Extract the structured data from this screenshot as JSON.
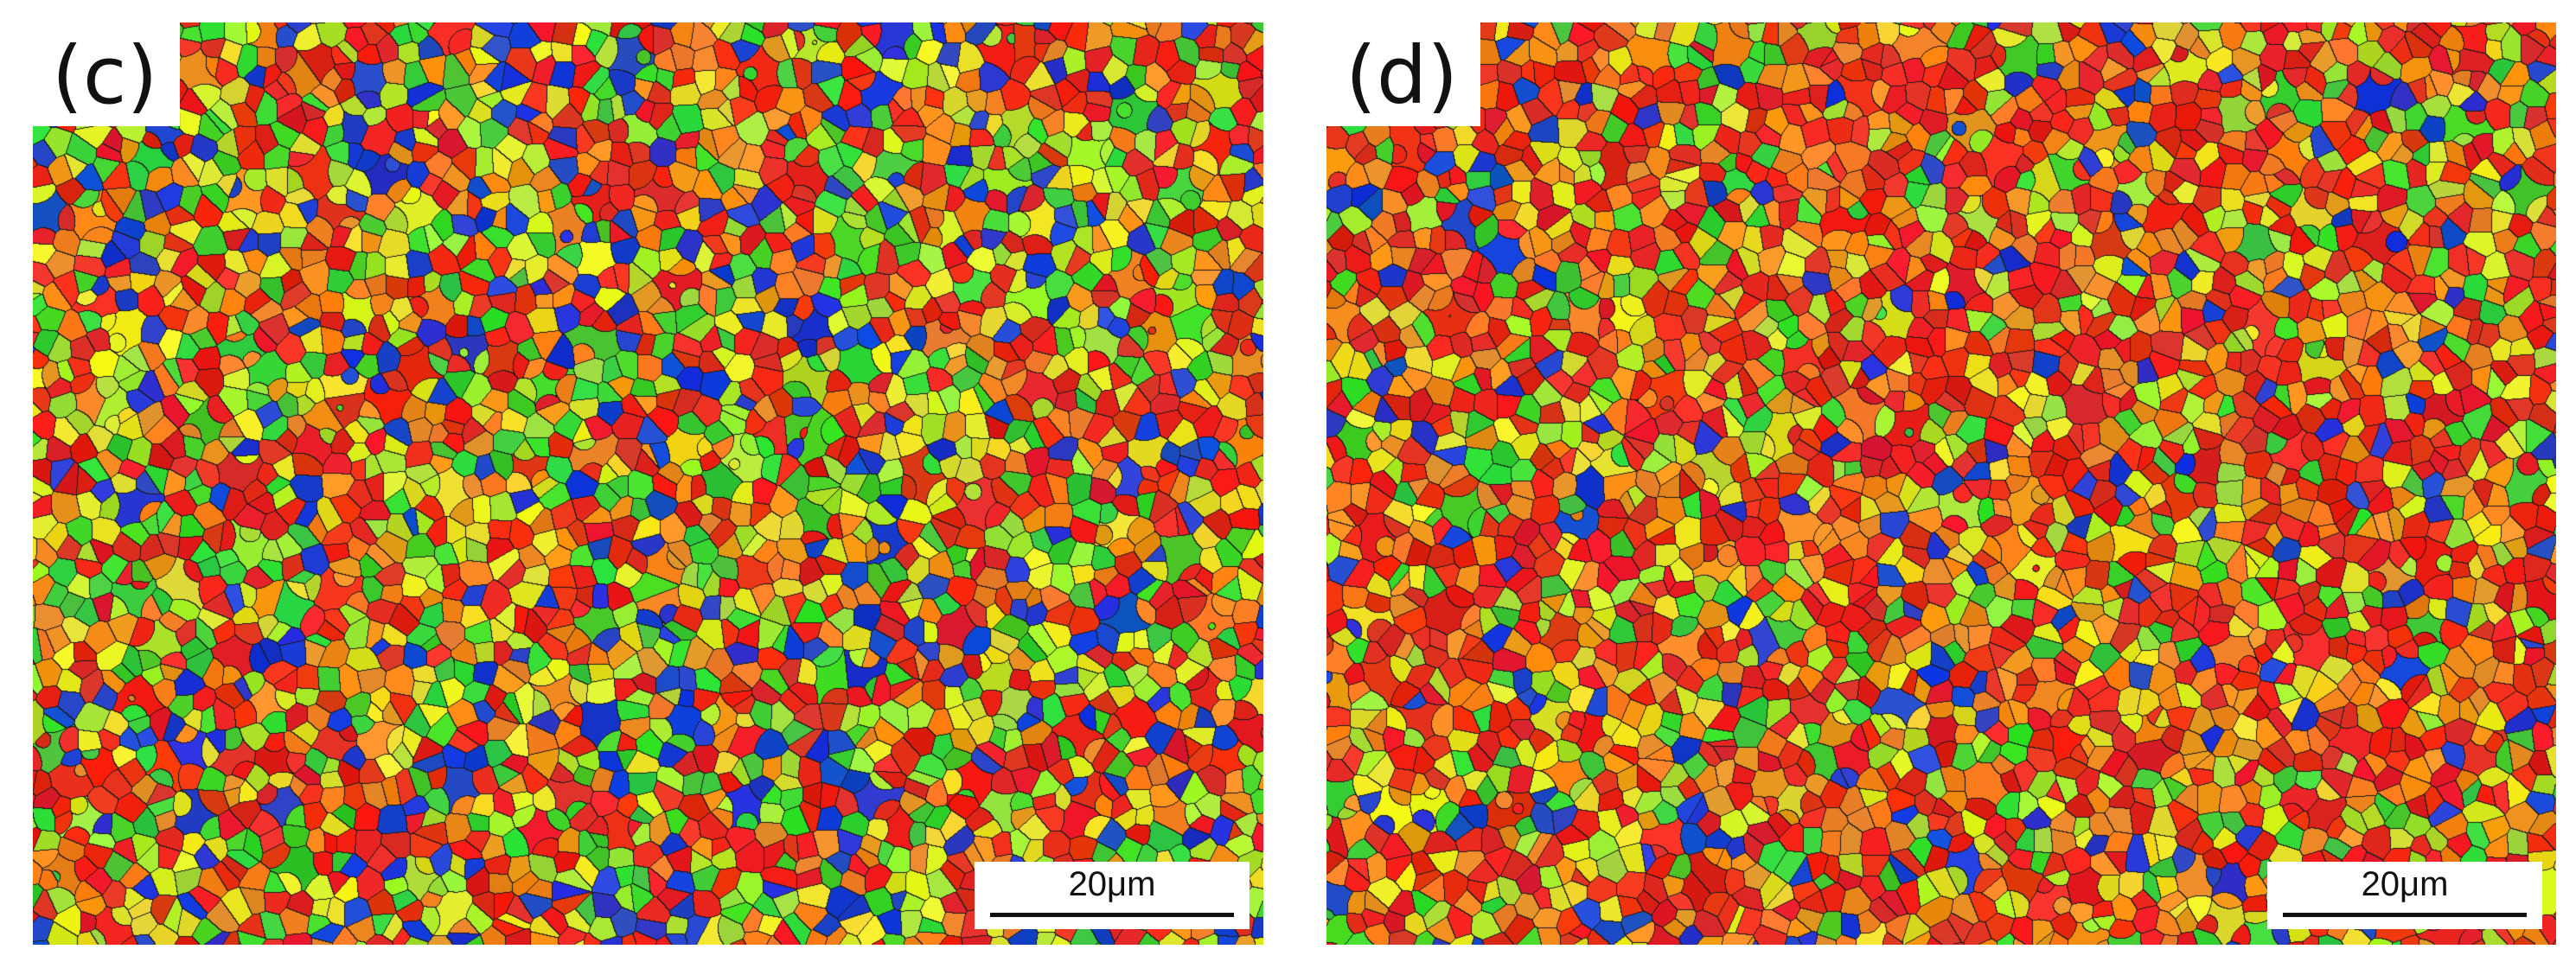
{
  "panels": [
    {
      "label": "(c)",
      "scale_bar": "20μm"
    },
    {
      "label": "(d)",
      "scale_bar": "20μm"
    }
  ],
  "colors": {
    "red": "#e8281c",
    "orange": "#f28a1e",
    "yellow": "#e6e626",
    "lime": "#a6e632",
    "green": "#3cd232",
    "blue": "#1f3fd0",
    "boundary": "#1a1a1a"
  }
}
